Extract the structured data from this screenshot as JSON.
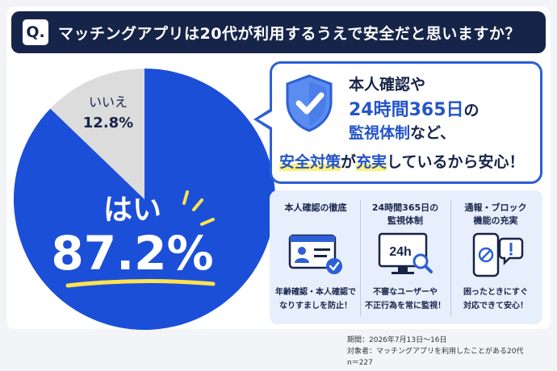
{
  "question": {
    "badge": "Q.",
    "text": "マッチングアプリは20代が利用するうえで安全だと思いますか？"
  },
  "chart_data": {
    "type": "pie",
    "slices": [
      {
        "label": "はい",
        "value": 87.2,
        "display": "87.2%",
        "color": "#1c4fd8"
      },
      {
        "label": "いいえ",
        "value": 12.8,
        "display": "12.8%",
        "color": "#dcdcdc"
      }
    ],
    "start": "top",
    "direction": "counterclockwise-from-no"
  },
  "bubble": {
    "line1": "本人確認や",
    "line2_a": "24時間365日",
    "line2_b": "の",
    "line3_a": "監視体制",
    "line3_b": "など、",
    "line4_a": "安全対策",
    "line4_b": "が",
    "line4_c": "充実",
    "line4_d": "しているから安心！"
  },
  "features": [
    {
      "title": "本人確認の徹底",
      "desc1": "年齢確認・本人確認で",
      "desc2": "なりすましを防止！",
      "icon": "id-card-icon"
    },
    {
      "title": "24時間365日の",
      "title2": "監視体制",
      "desc1": "不審なユーザーや",
      "desc2": "不正行為を常に監視！",
      "icon": "monitor-24h-icon",
      "icon_text": "24h"
    },
    {
      "title": "通報・ブロック",
      "title2": "機能の充実",
      "desc1": "困ったときにすぐ",
      "desc2": "対応できて安心！",
      "icon": "phone-block-icon"
    }
  ],
  "footer": {
    "period": "期間：2026年7月13日〜16日",
    "target": "対象者：マッチングアプリを利用したことがある20代",
    "n": "n＝227"
  },
  "colors": {
    "navy": "#172449",
    "blue": "#1c4fd8",
    "gray": "#dcdcdc",
    "highlight": "#fff07a"
  }
}
